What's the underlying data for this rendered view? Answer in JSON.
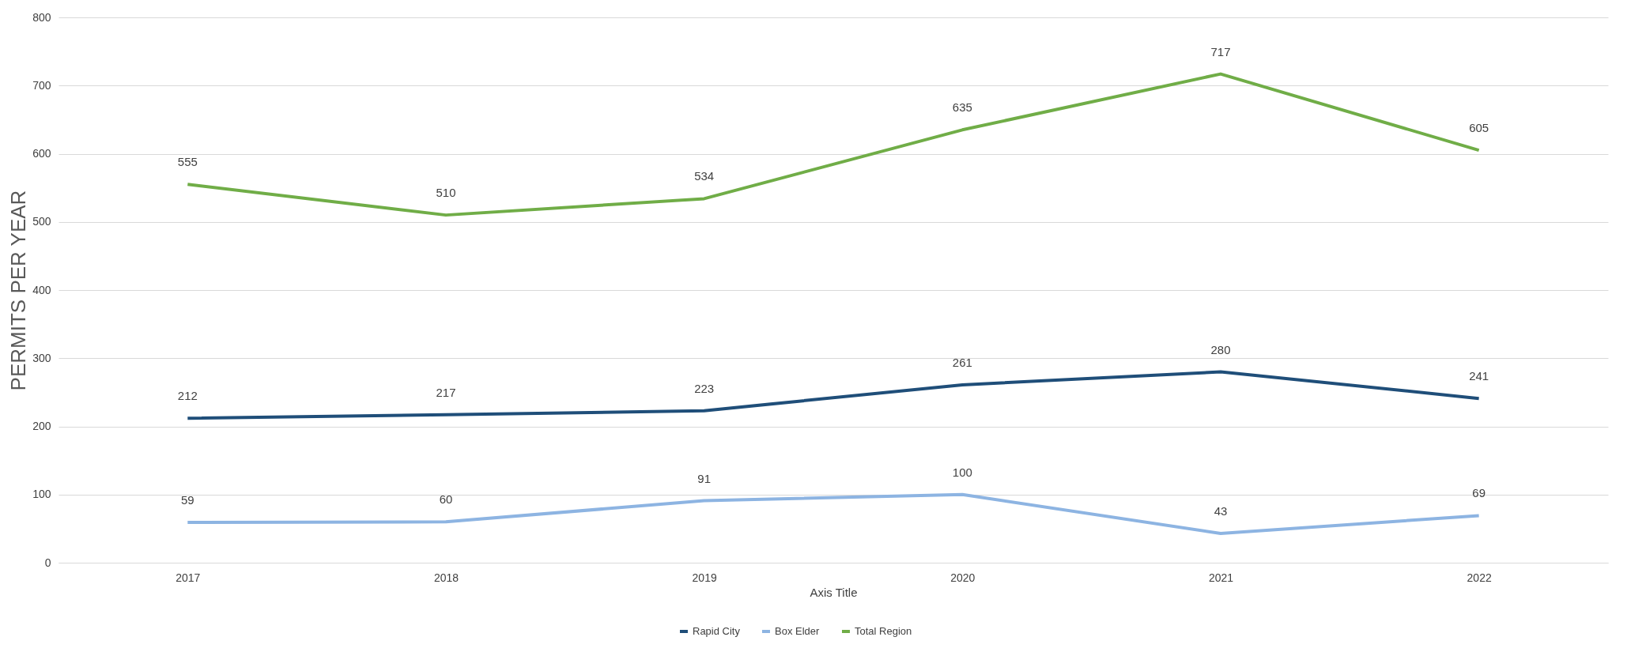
{
  "chart_data": {
    "type": "line",
    "xlabel": "Axis Title",
    "ylabel": "PERMITS PER YEAR",
    "categories": [
      "2017",
      "2018",
      "2019",
      "2020",
      "2021",
      "2022"
    ],
    "series": [
      {
        "name": "Rapid City",
        "color": "#1f4e79",
        "values": [
          212,
          217,
          223,
          261,
          280,
          241
        ]
      },
      {
        "name": "Box Elder",
        "color": "#8db4e2",
        "values": [
          59,
          60,
          91,
          100,
          43,
          69
        ]
      },
      {
        "name": "Total Region",
        "color": "#70ad47",
        "values": [
          555,
          510,
          534,
          635,
          717,
          605
        ]
      }
    ],
    "ylim": [
      0,
      800
    ],
    "yticks": [
      0,
      100,
      200,
      300,
      400,
      500,
      600,
      700,
      800
    ],
    "grid": "y",
    "legend": "bottom",
    "data_labels": true
  }
}
